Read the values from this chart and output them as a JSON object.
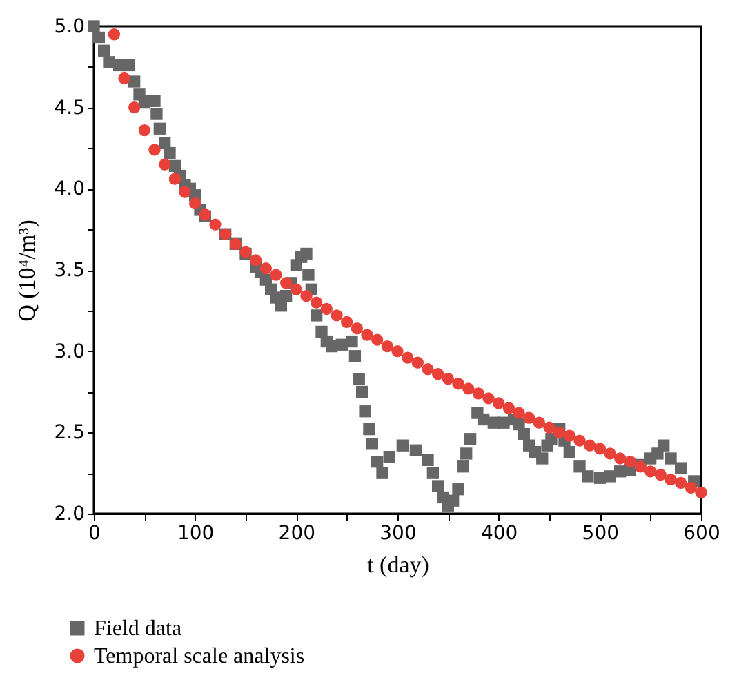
{
  "chart_data": {
    "type": "scatter",
    "xlabel": "t (day)",
    "ylabel": "Q (10⁴/m³)",
    "xlim": [
      0,
      600
    ],
    "ylim": [
      2.0,
      5.0
    ],
    "xticks": [
      0,
      {
        "value": 50,
        "label": null
      },
      100,
      {
        "value": 150,
        "label": null
      },
      200,
      {
        "value": 250,
        "label": null
      },
      300,
      {
        "value": 350,
        "label": null
      },
      400,
      {
        "value": 450,
        "label": null
      },
      500,
      {
        "value": 550,
        "label": null
      },
      600
    ],
    "yticks": [
      {
        "value": 2.0,
        "label": "2.0"
      },
      {
        "value": 2.25,
        "label": null
      },
      {
        "value": 2.5,
        "label": "2.5"
      },
      {
        "value": 2.75,
        "label": null
      },
      {
        "value": 3.0,
        "label": "3.0"
      },
      {
        "value": 3.25,
        "label": null
      },
      {
        "value": 3.5,
        "label": "3.5"
      },
      {
        "value": 3.75,
        "label": null
      },
      {
        "value": 4.0,
        "label": "4.0"
      },
      {
        "value": 4.25,
        "label": null
      },
      {
        "value": 4.5,
        "label": "4.5"
      },
      {
        "value": 4.75,
        "label": null
      },
      {
        "value": 5.0,
        "label": "5.0"
      }
    ],
    "grid": false,
    "legend": "bottom left",
    "series": [
      {
        "name": "Field data",
        "color": "#666666",
        "marker": "square",
        "x": [
          0,
          5,
          10,
          15,
          25,
          35,
          40,
          45,
          50,
          55,
          60,
          62,
          65,
          70,
          75,
          80,
          85,
          90,
          95,
          100,
          105,
          110,
          120,
          130,
          140,
          150,
          160,
          165,
          170,
          175,
          180,
          185,
          190,
          195,
          200,
          205,
          210,
          212,
          215,
          220,
          225,
          230,
          235,
          245,
          255,
          258,
          262,
          265,
          268,
          272,
          275,
          280,
          285,
          292,
          305,
          318,
          330,
          335,
          340,
          345,
          350,
          355,
          360,
          365,
          368,
          372,
          379,
          385,
          395,
          405,
          415,
          420,
          425,
          430,
          436,
          443,
          448,
          452,
          456,
          460,
          465,
          470,
          480,
          488,
          500,
          510,
          520,
          530,
          540,
          550,
          557,
          563,
          570,
          580,
          593
        ],
        "values": [
          5.0,
          4.93,
          4.85,
          4.78,
          4.76,
          4.76,
          4.66,
          4.58,
          4.53,
          4.54,
          4.54,
          4.46,
          4.37,
          4.28,
          4.22,
          4.14,
          4.08,
          4.02,
          4.0,
          3.96,
          3.87,
          3.83,
          null,
          3.72,
          3.66,
          3.6,
          3.52,
          3.49,
          3.44,
          3.38,
          3.33,
          3.28,
          3.34,
          3.42,
          3.53,
          3.58,
          3.6,
          3.47,
          3.38,
          3.22,
          3.12,
          3.06,
          3.03,
          3.04,
          3.06,
          2.97,
          2.83,
          2.75,
          2.63,
          2.52,
          2.43,
          2.32,
          2.25,
          2.35,
          2.42,
          2.39,
          2.33,
          2.25,
          2.17,
          2.1,
          2.05,
          2.08,
          2.15,
          2.29,
          2.37,
          2.46,
          2.62,
          2.58,
          2.56,
          2.56,
          2.58,
          2.55,
          2.49,
          2.42,
          2.38,
          2.34,
          2.42,
          2.46,
          null,
          2.52,
          2.45,
          2.38,
          2.29,
          2.23,
          2.22,
          2.23,
          2.26,
          2.27,
          2.3,
          2.34,
          2.37,
          2.42,
          2.34,
          2.28,
          2.2
        ]
      },
      {
        "name": "Temporal scale analysis",
        "color": "#e8413a",
        "marker": "circle",
        "x": [
          20,
          30,
          40,
          50,
          60,
          70,
          80,
          90,
          100,
          110,
          120,
          130,
          140,
          150,
          160,
          170,
          180,
          190,
          200,
          210,
          220,
          230,
          240,
          250,
          260,
          270,
          280,
          290,
          300,
          310,
          320,
          330,
          340,
          350,
          360,
          370,
          380,
          390,
          400,
          410,
          420,
          430,
          440,
          450,
          460,
          470,
          480,
          490,
          500,
          510,
          520,
          530,
          540,
          550,
          560,
          570,
          580,
          590,
          600
        ],
        "values": [
          4.95,
          4.68,
          4.5,
          4.36,
          4.24,
          4.15,
          4.06,
          3.98,
          3.91,
          3.84,
          3.78,
          3.72,
          3.66,
          3.61,
          3.56,
          3.51,
          3.47,
          3.42,
          3.38,
          3.34,
          3.3,
          3.26,
          3.22,
          3.18,
          3.14,
          3.1,
          3.07,
          3.03,
          3.0,
          2.96,
          2.93,
          2.89,
          2.86,
          2.83,
          2.8,
          2.77,
          2.74,
          2.71,
          2.68,
          2.65,
          2.62,
          2.59,
          2.56,
          2.53,
          2.5,
          2.48,
          2.45,
          2.42,
          2.4,
          2.37,
          2.34,
          2.32,
          2.29,
          2.26,
          2.24,
          2.21,
          2.19,
          2.16,
          2.13
        ]
      }
    ]
  }
}
